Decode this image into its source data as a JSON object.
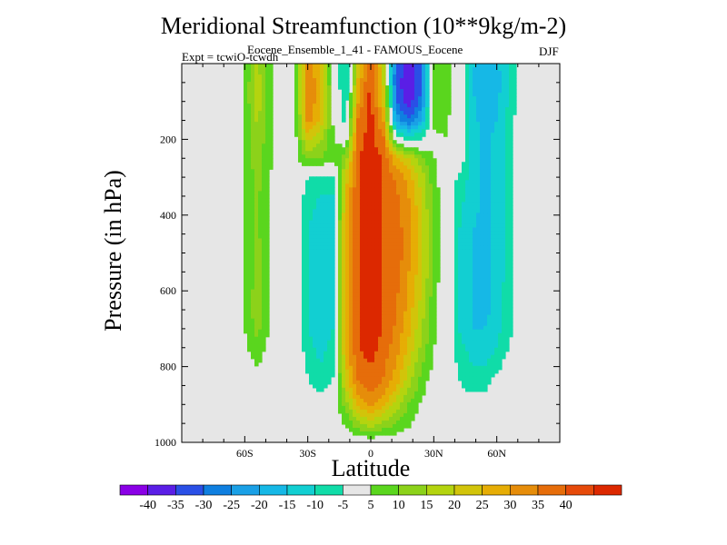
{
  "title": "Meridional Streamfunction (10**9kg/m-2)",
  "subtitle": "Eocene_Ensemble_1_41 - FAMOUS_Eocene",
  "expt_label": "Expt = tcwiO-tcwdh",
  "season": "DJF",
  "colors": {
    "background_panel": "#e6e6e6",
    "neutral_band": "#e6e6e6",
    "palette": [
      "#8a00e6",
      "#5a1ee6",
      "#2a4fe6",
      "#0f7fe0",
      "#1aa0e6",
      "#16b8e6",
      "#12cfd2",
      "#10dca8",
      "#e6e6e6",
      "#5ad61e",
      "#8cd21a",
      "#b4d40f",
      "#d2c40a",
      "#e6ad05",
      "#e68d0a",
      "#e66d0a",
      "#e64a0a",
      "#dc2800"
    ]
  },
  "chart_data": {
    "type": "heatmap",
    "title": "Meridional Streamfunction (10**9kg/m-2)",
    "xlabel": "Latitude",
    "ylabel": "Pressure (in hPa)",
    "xlim": [
      -90,
      90
    ],
    "ylim": [
      1000,
      0
    ],
    "x_ticks": [
      {
        "value": -60,
        "label": "60S"
      },
      {
        "value": -30,
        "label": "30S"
      },
      {
        "value": 0,
        "label": "0"
      },
      {
        "value": 30,
        "label": "30N"
      },
      {
        "value": 60,
        "label": "60N"
      }
    ],
    "y_ticks": [
      {
        "value": 200,
        "label": "200"
      },
      {
        "value": 400,
        "label": "400"
      },
      {
        "value": 600,
        "label": "600"
      },
      {
        "value": 800,
        "label": "800"
      },
      {
        "value": 1000,
        "label": "1000"
      }
    ],
    "colorbar_labels": [
      "-40",
      "-35",
      "-30",
      "-25",
      "-20",
      "-15",
      "-10",
      "-5",
      "5",
      "10",
      "15",
      "20",
      "25",
      "30",
      "35",
      "40"
    ],
    "x": [
      -90,
      -84,
      -78,
      -72,
      -66,
      -60,
      -54,
      -48,
      -42,
      -36,
      -30,
      -24,
      -18,
      -12,
      -6,
      0,
      6,
      12,
      18,
      24,
      30,
      36,
      42,
      48,
      54,
      60,
      66,
      72,
      78,
      84,
      90
    ],
    "y": [
      0,
      50,
      100,
      150,
      200,
      250,
      300,
      350,
      400,
      450,
      500,
      550,
      600,
      650,
      700,
      750,
      800,
      850,
      900,
      950,
      1000
    ],
    "z": [
      [
        0,
        0,
        0,
        0,
        0,
        6,
        16,
        6,
        0,
        5,
        32,
        25,
        2,
        -12,
        22,
        42,
        18,
        -30,
        -38,
        -30,
        10,
        8,
        0,
        -14,
        -18,
        -16,
        -10,
        0,
        0,
        0,
        0
      ],
      [
        0,
        0,
        0,
        0,
        0,
        6,
        18,
        7,
        0,
        5,
        34,
        27,
        2,
        -12,
        26,
        42,
        20,
        -32,
        -40,
        -32,
        10,
        8,
        0,
        -14,
        -20,
        -18,
        -10,
        0,
        0,
        0,
        0
      ],
      [
        0,
        0,
        0,
        0,
        0,
        6,
        18,
        7,
        0,
        5,
        34,
        27,
        3,
        -10,
        30,
        42,
        24,
        -30,
        -38,
        -28,
        8,
        7,
        0,
        -14,
        -18,
        -16,
        -9,
        0,
        0,
        0,
        0
      ],
      [
        0,
        0,
        0,
        0,
        0,
        6,
        16,
        6,
        0,
        4,
        32,
        25,
        4,
        -8,
        36,
        42,
        30,
        -22,
        -30,
        -20,
        6,
        6,
        0,
        -13,
        -17,
        -15,
        -8,
        0,
        0,
        0,
        0
      ],
      [
        0,
        0,
        0,
        0,
        0,
        6,
        14,
        6,
        0,
        3,
        22,
        16,
        6,
        0,
        38,
        42,
        36,
        0,
        -6,
        -4,
        4,
        5,
        0,
        -12,
        -16,
        -14,
        -8,
        0,
        0,
        0,
        0
      ],
      [
        0,
        0,
        0,
        0,
        0,
        6,
        13,
        6,
        0,
        2,
        12,
        10,
        7,
        12,
        40,
        42,
        40,
        26,
        20,
        12,
        5,
        4,
        0,
        -12,
        -16,
        -14,
        -7,
        0,
        0,
        0,
        0
      ],
      [
        0,
        0,
        0,
        0,
        0,
        6,
        12,
        5,
        0,
        0,
        -5,
        -6,
        -6,
        22,
        40,
        42,
        40,
        34,
        28,
        18,
        7,
        0,
        -6,
        -12,
        -16,
        -14,
        -7,
        0,
        0,
        0,
        0
      ],
      [
        0,
        0,
        0,
        0,
        0,
        5,
        11,
        5,
        0,
        0,
        -8,
        -10,
        -10,
        24,
        40,
        42,
        40,
        36,
        30,
        20,
        8,
        0,
        -8,
        -13,
        -16,
        -14,
        -7,
        0,
        0,
        0,
        0
      ],
      [
        0,
        0,
        0,
        0,
        0,
        5,
        11,
        5,
        0,
        0,
        -9,
        -12,
        -10,
        26,
        40,
        42,
        40,
        36,
        32,
        22,
        8,
        0,
        -9,
        -14,
        -16,
        -14,
        -7,
        0,
        0,
        0,
        0
      ],
      [
        0,
        0,
        0,
        0,
        0,
        5,
        11,
        5,
        0,
        0,
        -10,
        -13,
        -10,
        28,
        40,
        42,
        40,
        38,
        32,
        22,
        8,
        0,
        -10,
        -15,
        -16,
        -14,
        -7,
        0,
        0,
        0,
        0
      ],
      [
        0,
        0,
        0,
        0,
        0,
        5,
        12,
        5,
        0,
        0,
        -10,
        -14,
        -11,
        28,
        40,
        42,
        40,
        38,
        32,
        22,
        8,
        0,
        -10,
        -15,
        -16,
        -14,
        -7,
        0,
        0,
        0,
        0
      ],
      [
        0,
        0,
        0,
        0,
        0,
        5,
        12,
        5,
        0,
        0,
        -10,
        -14,
        -11,
        28,
        40,
        42,
        40,
        38,
        30,
        22,
        8,
        0,
        -10,
        -15,
        -16,
        -14,
        -7,
        0,
        0,
        0,
        0
      ],
      [
        0,
        0,
        0,
        0,
        0,
        5,
        13,
        5,
        0,
        0,
        -10,
        -15,
        -11,
        28,
        40,
        42,
        40,
        36,
        30,
        20,
        7,
        0,
        -10,
        -15,
        -16,
        -14,
        -6,
        0,
        0,
        0,
        0
      ],
      [
        0,
        0,
        0,
        0,
        0,
        5,
        14,
        5,
        0,
        0,
        -10,
        -15,
        -11,
        28,
        40,
        42,
        40,
        36,
        28,
        18,
        7,
        0,
        -10,
        -15,
        -16,
        -14,
        -6,
        0,
        0,
        0,
        0
      ],
      [
        0,
        0,
        0,
        0,
        0,
        5,
        12,
        4,
        0,
        0,
        -10,
        -14,
        -10,
        28,
        40,
        42,
        40,
        34,
        26,
        16,
        6,
        0,
        -10,
        -15,
        -15,
        -12,
        -6,
        0,
        0,
        0,
        0
      ],
      [
        0,
        0,
        0,
        0,
        0,
        4,
        8,
        3,
        0,
        0,
        -8,
        -12,
        -8,
        26,
        40,
        42,
        38,
        32,
        24,
        14,
        5,
        0,
        -8,
        -12,
        -12,
        -10,
        -5,
        0,
        0,
        0,
        0
      ],
      [
        0,
        0,
        0,
        0,
        0,
        3,
        5,
        2,
        0,
        0,
        -6,
        -10,
        -6,
        24,
        38,
        40,
        36,
        30,
        20,
        10,
        4,
        0,
        -6,
        -10,
        -10,
        -8,
        0,
        0,
        0,
        0,
        0
      ],
      [
        0,
        0,
        0,
        0,
        0,
        2,
        2,
        0,
        0,
        0,
        -4,
        -7,
        -4,
        20,
        34,
        38,
        34,
        26,
        16,
        8,
        0,
        0,
        -4,
        -8,
        -8,
        0,
        0,
        0,
        0,
        0,
        0
      ],
      [
        0,
        0,
        0,
        0,
        0,
        0,
        0,
        0,
        0,
        0,
        0,
        0,
        0,
        12,
        26,
        32,
        26,
        18,
        10,
        4,
        0,
        0,
        0,
        0,
        0,
        0,
        0,
        0,
        0,
        0,
        0
      ],
      [
        0,
        0,
        0,
        0,
        0,
        0,
        0,
        0,
        0,
        0,
        0,
        0,
        0,
        6,
        14,
        18,
        14,
        10,
        6,
        2,
        0,
        0,
        0,
        0,
        0,
        0,
        0,
        0,
        0,
        0,
        0
      ],
      [
        0,
        0,
        0,
        0,
        0,
        0,
        0,
        0,
        0,
        0,
        0,
        0,
        0,
        0,
        0,
        0,
        0,
        0,
        0,
        0,
        0,
        0,
        0,
        0,
        0,
        0,
        0,
        0,
        0,
        0,
        0
      ]
    ]
  }
}
